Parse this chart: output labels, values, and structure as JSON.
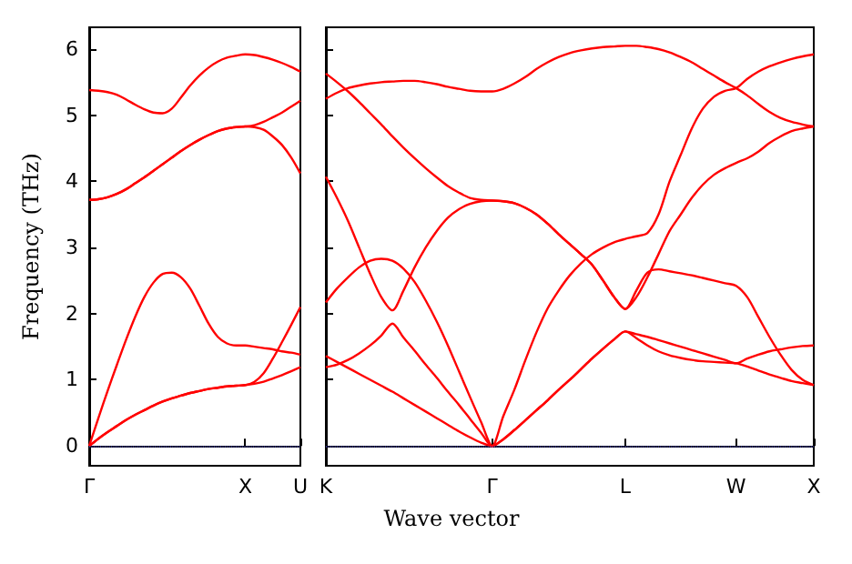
{
  "chart_data": [
    {
      "type": "line",
      "ylabel": "Frequency (THz)",
      "ylim": [
        -0.3,
        6.33
      ],
      "yticks": [
        0,
        1,
        2,
        3,
        4,
        5,
        6
      ],
      "categories": [
        "Γ",
        null,
        null,
        null,
        null,
        null,
        null,
        null,
        null,
        null,
        null,
        null,
        null,
        null,
        null,
        null,
        null,
        "X",
        null,
        null,
        null,
        null,
        null,
        "U"
      ],
      "marker": "none",
      "ref_lines": [
        {
          "axis": "y",
          "value": 0,
          "color": "#5555ff",
          "line_style": "dotted"
        }
      ],
      "series": [
        {
          "color": "#ff0000",
          "values": [
            5.38,
            5.37,
            5.35,
            5.31,
            5.24,
            5.16,
            5.09,
            5.04,
            5.03,
            5.1,
            5.27,
            5.45,
            5.6,
            5.72,
            5.81,
            5.87,
            5.9,
            5.92,
            5.91,
            5.88,
            5.84,
            5.79,
            5.73,
            5.66
          ]
        },
        {
          "color": "#ff0000",
          "values": [
            3.72,
            3.73,
            3.76,
            3.81,
            3.88,
            3.97,
            4.06,
            4.16,
            4.26,
            4.36,
            4.46,
            4.55,
            4.63,
            4.7,
            4.76,
            4.8,
            4.82,
            4.83,
            4.85,
            4.9,
            4.97,
            5.04,
            5.13,
            5.22
          ]
        },
        {
          "color": "#ff0000",
          "values": [
            3.72,
            3.73,
            3.76,
            3.81,
            3.88,
            3.97,
            4.06,
            4.16,
            4.26,
            4.36,
            4.46,
            4.55,
            4.63,
            4.7,
            4.76,
            4.8,
            4.82,
            4.83,
            4.82,
            4.78,
            4.68,
            4.55,
            4.36,
            4.12
          ]
        },
        {
          "color": "#ff0000",
          "values": [
            0,
            0.42,
            0.83,
            1.22,
            1.6,
            1.95,
            2.25,
            2.47,
            2.6,
            2.62,
            2.55,
            2.38,
            2.12,
            1.85,
            1.65,
            1.55,
            1.52,
            1.52,
            1.5,
            1.48,
            1.46,
            1.43,
            1.41,
            1.38
          ]
        },
        {
          "color": "#ff0000",
          "values": [
            0,
            0.11,
            0.21,
            0.3,
            0.39,
            0.47,
            0.54,
            0.61,
            0.67,
            0.72,
            0.76,
            0.8,
            0.83,
            0.86,
            0.88,
            0.9,
            0.91,
            0.92,
            0.97,
            1.1,
            1.32,
            1.57,
            1.83,
            2.1
          ]
        },
        {
          "color": "#ff0000",
          "values": [
            0,
            0.11,
            0.21,
            0.3,
            0.39,
            0.47,
            0.54,
            0.61,
            0.67,
            0.72,
            0.76,
            0.8,
            0.83,
            0.86,
            0.88,
            0.9,
            0.91,
            0.92,
            0.94,
            0.97,
            1.02,
            1.07,
            1.13,
            1.19
          ]
        }
      ]
    },
    {
      "type": "line",
      "xlabel": "Wave vector",
      "ylim": [
        -0.3,
        6.33
      ],
      "yticks": [
        0,
        1,
        2,
        3,
        4,
        5,
        6
      ],
      "tick_labels": "x",
      "categories": [
        "K",
        null,
        null,
        null,
        null,
        null,
        null,
        null,
        null,
        null,
        null,
        null,
        null,
        null,
        null,
        "Γ",
        null,
        null,
        null,
        null,
        null,
        null,
        null,
        null,
        null,
        null,
        null,
        "L",
        null,
        null,
        null,
        null,
        null,
        null,
        null,
        null,
        null,
        "W",
        null,
        null,
        null,
        null,
        null,
        null,
        "X"
      ],
      "marker": "none",
      "ref_lines": [
        {
          "axis": "y",
          "value": 0,
          "color": "#5555ff",
          "line_style": "dotted"
        }
      ],
      "series": [
        {
          "color": "#ff0000",
          "values": [
            1.36,
            1.27,
            1.18,
            1.09,
            1.0,
            0.91,
            0.82,
            0.72,
            0.62,
            0.52,
            0.42,
            0.32,
            0.22,
            0.13,
            0.05,
            0,
            0.1,
            0.24,
            0.39,
            0.54,
            0.69,
            0.85,
            1.0,
            1.16,
            1.32,
            1.47,
            1.61,
            1.73,
            1.69,
            1.65,
            1.6,
            1.55,
            1.5,
            1.45,
            1.4,
            1.35,
            1.3,
            1.25,
            1.32,
            1.38,
            1.43,
            1.46,
            1.49,
            1.51,
            1.52
          ]
        },
        {
          "color": "#ff0000",
          "values": [
            1.19,
            1.23,
            1.3,
            1.4,
            1.52,
            1.67,
            1.85,
            1.64,
            1.44,
            1.23,
            1.03,
            0.82,
            0.62,
            0.41,
            0.2,
            0,
            0.1,
            0.24,
            0.39,
            0.54,
            0.69,
            0.85,
            1.0,
            1.16,
            1.32,
            1.47,
            1.61,
            1.73,
            1.63,
            1.52,
            1.43,
            1.37,
            1.33,
            1.3,
            1.28,
            1.27,
            1.26,
            1.25,
            1.2,
            1.14,
            1.08,
            1.03,
            0.98,
            0.95,
            0.92
          ]
        },
        {
          "color": "#ff0000",
          "values": [
            2.17,
            2.38,
            2.55,
            2.7,
            2.8,
            2.83,
            2.8,
            2.68,
            2.48,
            2.2,
            1.88,
            1.52,
            1.13,
            0.74,
            0.36,
            0,
            0.45,
            0.85,
            1.3,
            1.72,
            2.08,
            2.35,
            2.58,
            2.76,
            2.9,
            3.0,
            3.08,
            3.13,
            3.17,
            3.22,
            3.5,
            4.0,
            4.4,
            4.8,
            5.1,
            5.28,
            5.37,
            5.41,
            5.55,
            5.66,
            5.74,
            5.8,
            5.85,
            5.89,
            5.92
          ]
        },
        {
          "color": "#ff0000",
          "values": [
            4.07,
            3.75,
            3.4,
            3.0,
            2.6,
            2.25,
            2.05,
            2.35,
            2.7,
            3.0,
            3.25,
            3.45,
            3.58,
            3.66,
            3.7,
            3.71,
            3.7,
            3.67,
            3.6,
            3.5,
            3.36,
            3.2,
            3.05,
            2.9,
            2.74,
            2.5,
            2.25,
            2.07,
            2.25,
            2.55,
            2.9,
            3.25,
            3.5,
            3.75,
            3.95,
            4.1,
            4.2,
            4.28,
            4.35,
            4.45,
            4.58,
            4.68,
            4.76,
            4.8,
            4.83
          ]
        },
        {
          "color": "#ff0000",
          "values": [
            5.63,
            5.5,
            5.36,
            5.2,
            5.03,
            4.86,
            4.68,
            4.51,
            4.35,
            4.2,
            4.06,
            3.93,
            3.83,
            3.75,
            3.72,
            3.71,
            3.7,
            3.67,
            3.6,
            3.5,
            3.36,
            3.2,
            3.05,
            2.9,
            2.74,
            2.5,
            2.25,
            2.07,
            2.35,
            2.62,
            2.67,
            2.64,
            2.61,
            2.58,
            2.54,
            2.5,
            2.46,
            2.42,
            2.25,
            1.95,
            1.65,
            1.38,
            1.15,
            1.0,
            0.92
          ]
        },
        {
          "color": "#ff0000",
          "values": [
            5.25,
            5.34,
            5.41,
            5.45,
            5.48,
            5.5,
            5.51,
            5.52,
            5.52,
            5.5,
            5.47,
            5.43,
            5.4,
            5.37,
            5.36,
            5.36,
            5.4,
            5.48,
            5.58,
            5.7,
            5.8,
            5.88,
            5.94,
            5.98,
            6.01,
            6.03,
            6.04,
            6.05,
            6.05,
            6.03,
            6.0,
            5.95,
            5.88,
            5.8,
            5.7,
            5.6,
            5.5,
            5.41,
            5.3,
            5.17,
            5.05,
            4.96,
            4.9,
            4.86,
            4.83
          ]
        }
      ]
    }
  ]
}
